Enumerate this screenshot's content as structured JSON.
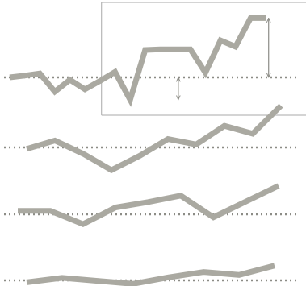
{
  "colors": {
    "line": "#aaa9a1",
    "baseline": "#8c8c86",
    "frame": "#a8a8a8",
    "arrow": "#8c8c86",
    "background": "#ffffff"
  },
  "chart_data": [
    {
      "type": "line",
      "x": [
        0,
        1,
        2,
        3,
        4,
        5,
        6,
        7,
        8,
        9,
        10,
        11,
        12,
        13,
        14,
        15,
        16,
        17
      ],
      "values": [
        3.2,
        3.8,
        4.5,
        -1.6,
        2.4,
        -0.8,
        2.0,
        5.0,
        -4.3,
        12.4,
        12.6,
        12.6,
        12.6,
        4.8,
        15.6,
        13.5,
        23.1,
        23.1
      ],
      "baseline": 3.2,
      "frame_from_x": 6.1,
      "annotations": [
        {
          "type": "double-arrow",
          "x": 11.2,
          "from": -4.3,
          "to": 3.2
        },
        {
          "type": "double-arrow",
          "x": 17.2,
          "from": 3.2,
          "to": 23.1
        }
      ]
    },
    {
      "type": "line",
      "x": [
        0,
        1,
        2,
        3,
        4,
        5,
        6,
        7,
        8,
        9
      ],
      "values": [
        -0.3,
        1.4,
        -1.3,
        -4.6,
        -1.7,
        1.7,
        0.6,
        4.4,
        2.8,
        8.5
      ],
      "baseline": 0
    },
    {
      "type": "line",
      "x": [
        0,
        1,
        2,
        3,
        4,
        5,
        6,
        7,
        8
      ],
      "values": [
        0.7,
        0.7,
        -2.0,
        1.4,
        2.5,
        3.8,
        -0.6,
        2.6,
        5.8
      ],
      "baseline": 0
    },
    {
      "type": "line",
      "x": [
        0,
        1,
        2,
        3,
        4,
        5,
        6,
        7
      ],
      "values": [
        -0.4,
        0.5,
        -0.1,
        -0.7,
        0.6,
        1.7,
        1.1,
        3.0
      ],
      "baseline": 0
    }
  ]
}
